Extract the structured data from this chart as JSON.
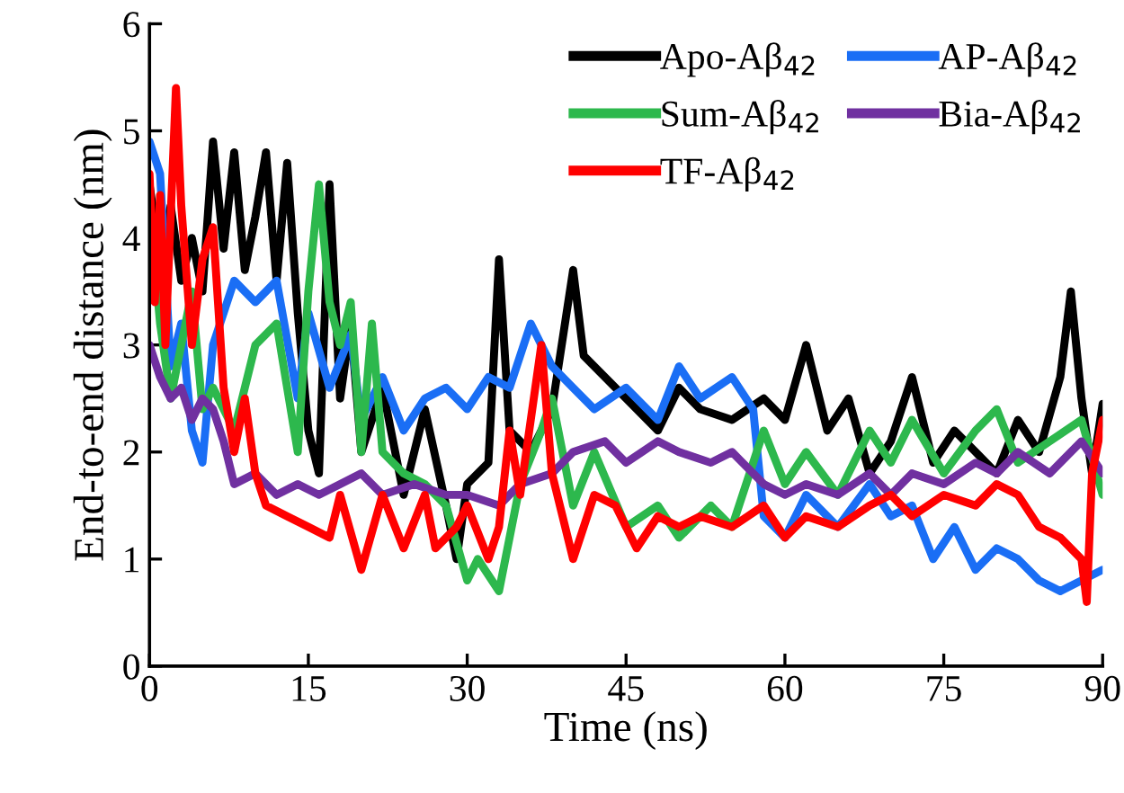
{
  "chart_data": {
    "type": "line",
    "xlabel": "Time (ns)",
    "ylabel": "End-to-end distance (nm)",
    "xlim": [
      0,
      90
    ],
    "ylim": [
      0,
      6
    ],
    "xticks": [
      0,
      15,
      30,
      45,
      60,
      75,
      90
    ],
    "yticks": [
      0,
      1,
      2,
      3,
      4,
      5,
      6
    ],
    "grid": false,
    "legend": "top right",
    "marker": "none",
    "line_style": "solid",
    "series": [
      {
        "name": "Apo-Aβ$_{42}$",
        "color": "#000000",
        "x": [
          0,
          1,
          2,
          3,
          4,
          5,
          6,
          7,
          8,
          9,
          10,
          11,
          12,
          13,
          14,
          15,
          16,
          17,
          18,
          19,
          20,
          22,
          24,
          26,
          28,
          29,
          30,
          32,
          33,
          34,
          36,
          38,
          40,
          41,
          43,
          45,
          48,
          50,
          52,
          55,
          58,
          60,
          62,
          64,
          66,
          68,
          70,
          72,
          74,
          76,
          78,
          80,
          82,
          84,
          86,
          87,
          88,
          89,
          90
        ],
        "values": [
          4.5,
          3.8,
          4.3,
          3.6,
          4.0,
          3.5,
          4.9,
          3.9,
          4.8,
          3.7,
          4.2,
          4.8,
          3.6,
          4.7,
          3.3,
          2.2,
          1.8,
          4.5,
          2.5,
          3.2,
          2.0,
          2.6,
          1.6,
          2.4,
          1.5,
          1.0,
          1.7,
          1.9,
          3.8,
          2.2,
          2.0,
          2.4,
          3.7,
          2.9,
          2.7,
          2.5,
          2.2,
          2.6,
          2.4,
          2.3,
          2.5,
          2.3,
          3.0,
          2.2,
          2.5,
          1.8,
          2.1,
          2.7,
          1.9,
          2.2,
          2.0,
          1.8,
          2.3,
          2.0,
          2.7,
          3.5,
          2.5,
          1.8,
          2.45
        ]
      },
      {
        "name": "AP-Aβ$_{42}$",
        "color": "#1a6ef5",
        "x": [
          0,
          1,
          2,
          3,
          4,
          5,
          6,
          8,
          10,
          12,
          14,
          15,
          17,
          19,
          20,
          22,
          24,
          26,
          28,
          30,
          32,
          34,
          36,
          38,
          40,
          42,
          45,
          48,
          50,
          52,
          55,
          57,
          58,
          60,
          62,
          65,
          68,
          70,
          72,
          74,
          76,
          78,
          80,
          82,
          84,
          86,
          88,
          90
        ],
        "values": [
          4.9,
          4.6,
          2.8,
          3.2,
          2.2,
          1.9,
          3.0,
          3.6,
          3.4,
          3.6,
          2.5,
          3.3,
          2.6,
          3.1,
          2.3,
          2.7,
          2.2,
          2.5,
          2.6,
          2.4,
          2.7,
          2.6,
          3.2,
          2.8,
          2.6,
          2.4,
          2.6,
          2.3,
          2.8,
          2.5,
          2.7,
          2.4,
          1.4,
          1.2,
          1.6,
          1.3,
          1.7,
          1.4,
          1.5,
          1.0,
          1.3,
          0.9,
          1.1,
          1.0,
          0.8,
          0.7,
          0.8,
          0.9
        ]
      },
      {
        "name": "Sum-Aβ$_{42}$",
        "color": "#2db84d",
        "x": [
          0,
          1,
          2,
          3,
          4,
          5,
          6,
          8,
          10,
          12,
          14,
          15,
          16,
          17,
          18,
          19,
          20,
          21,
          22,
          24,
          26,
          28,
          30,
          31,
          33,
          35,
          37,
          38,
          40,
          42,
          45,
          48,
          50,
          53,
          55,
          58,
          60,
          62,
          65,
          68,
          70,
          72,
          75,
          78,
          80,
          82,
          85,
          88,
          90
        ],
        "values": [
          4.3,
          3.2,
          2.5,
          3.0,
          3.5,
          2.4,
          2.6,
          2.2,
          3.0,
          3.2,
          2.0,
          3.5,
          4.5,
          3.4,
          3.0,
          3.4,
          2.0,
          3.2,
          2.0,
          1.8,
          1.7,
          1.5,
          0.8,
          1.0,
          0.7,
          1.7,
          2.2,
          2.5,
          1.5,
          2.0,
          1.3,
          1.5,
          1.2,
          1.5,
          1.3,
          2.2,
          1.7,
          2.0,
          1.6,
          2.2,
          1.9,
          2.3,
          1.8,
          2.2,
          2.4,
          1.9,
          2.1,
          2.3,
          1.6
        ]
      },
      {
        "name": "Bia-Aβ$_{42}$",
        "color": "#7030a0",
        "x": [
          0,
          1,
          2,
          3,
          4,
          5,
          6,
          7,
          8,
          10,
          12,
          14,
          16,
          18,
          20,
          22,
          25,
          28,
          30,
          33,
          35,
          38,
          40,
          43,
          45,
          48,
          50,
          53,
          55,
          58,
          60,
          62,
          65,
          68,
          70,
          72,
          75,
          78,
          80,
          82,
          85,
          88,
          90
        ],
        "values": [
          3.0,
          2.7,
          2.5,
          2.6,
          2.3,
          2.5,
          2.4,
          2.1,
          1.7,
          1.8,
          1.6,
          1.7,
          1.6,
          1.7,
          1.8,
          1.6,
          1.7,
          1.6,
          1.6,
          1.5,
          1.7,
          1.8,
          2.0,
          2.1,
          1.9,
          2.1,
          2.0,
          1.9,
          2.0,
          1.7,
          1.6,
          1.7,
          1.6,
          1.8,
          1.6,
          1.8,
          1.7,
          1.9,
          1.8,
          2.0,
          1.8,
          2.1,
          1.8
        ]
      },
      {
        "name": "TF-Aβ$_{42}$",
        "color": "#ff0000",
        "x": [
          0,
          0.5,
          1,
          1.5,
          2.5,
          3,
          4,
          5,
          6,
          7,
          8,
          9,
          10,
          11,
          13,
          15,
          17,
          18,
          20,
          22,
          24,
          26,
          27,
          29,
          30,
          32,
          33,
          34,
          35,
          37,
          38,
          40,
          42,
          44,
          46,
          48,
          50,
          52,
          55,
          58,
          60,
          62,
          65,
          68,
          70,
          72,
          75,
          78,
          80,
          82,
          84,
          86,
          87,
          88,
          88.5,
          89,
          90
        ],
        "values": [
          4.6,
          3.4,
          4.4,
          3.0,
          5.4,
          4.3,
          3.0,
          3.8,
          4.1,
          2.6,
          2.0,
          2.5,
          1.8,
          1.5,
          1.4,
          1.3,
          1.2,
          1.6,
          0.9,
          1.6,
          1.1,
          1.6,
          1.1,
          1.3,
          1.5,
          1.0,
          1.3,
          2.2,
          1.6,
          3.0,
          1.8,
          1.0,
          1.6,
          1.5,
          1.1,
          1.4,
          1.3,
          1.4,
          1.3,
          1.5,
          1.2,
          1.4,
          1.3,
          1.5,
          1.6,
          1.4,
          1.6,
          1.5,
          1.7,
          1.6,
          1.3,
          1.2,
          1.1,
          1.0,
          0.6,
          1.8,
          2.3
        ]
      }
    ]
  }
}
